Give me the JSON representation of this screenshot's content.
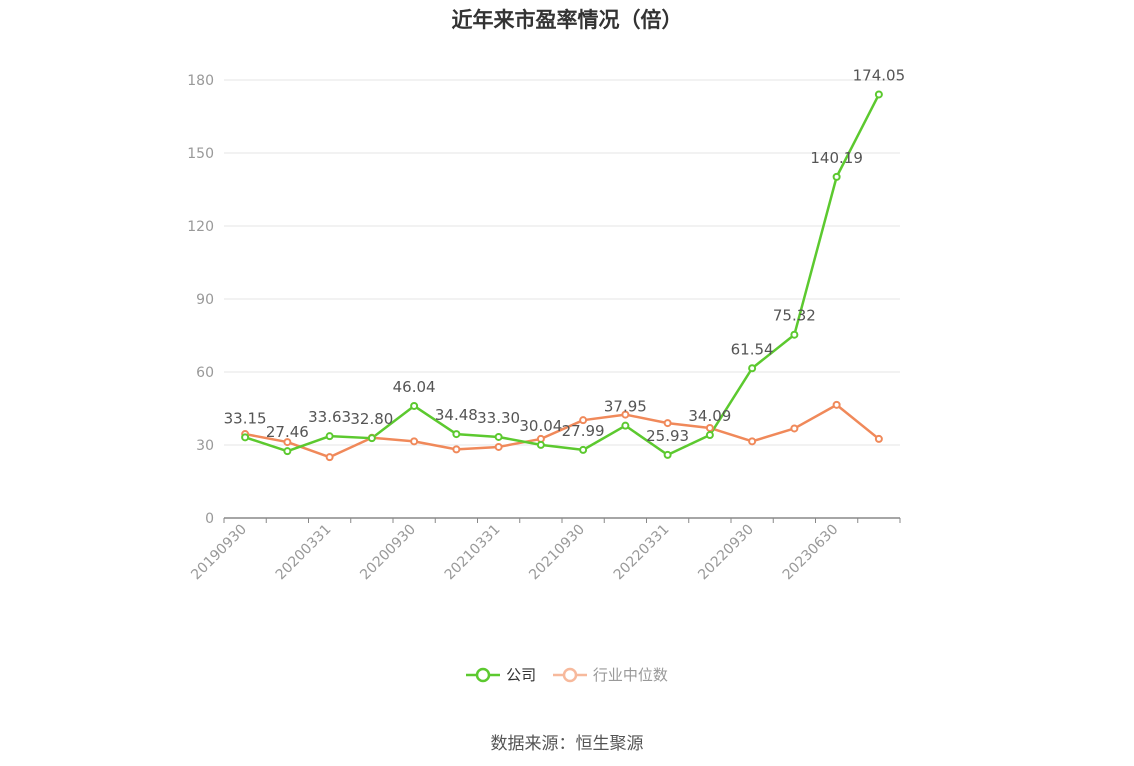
{
  "chart_data": {
    "type": "line",
    "title": "近年来市盈率情况（倍）",
    "xlabel": "",
    "ylabel": "",
    "ylim": [
      0,
      180
    ],
    "yticks": [
      0,
      30,
      60,
      90,
      120,
      150,
      180
    ],
    "x_tick_labels": [
      "20190930",
      "20200331",
      "20200930",
      "20210331",
      "20210930",
      "20220331",
      "20220930",
      "20230630"
    ],
    "grid": true,
    "legend_position": "bottom",
    "series": [
      {
        "name": "公司",
        "color": "#5cc92f",
        "values": [
          33.15,
          27.46,
          33.63,
          32.8,
          46.04,
          34.48,
          33.3,
          30.04,
          27.99,
          37.95,
          25.93,
          34.09,
          61.54,
          75.32,
          140.19,
          174.05
        ],
        "data_labels": [
          "33.15",
          "27.46",
          "33.63",
          "32.80",
          "46.04",
          "34.48",
          "33.30",
          "30.04",
          "27.99",
          "37.95",
          "25.93",
          "34.09",
          "61.54",
          "75.32",
          "140.19",
          "174.05"
        ]
      },
      {
        "name": "行业中位数",
        "color": "#f0895a",
        "values": [
          34.5,
          31.2,
          25.0,
          33.0,
          31.5,
          28.2,
          29.2,
          32.5,
          40.2,
          42.5,
          39.0,
          37.0,
          31.5,
          36.8,
          46.5,
          32.5
        ]
      }
    ]
  },
  "legend": {
    "items": [
      "公司",
      "行业中位数"
    ]
  },
  "source": "数据来源：恒生聚源"
}
